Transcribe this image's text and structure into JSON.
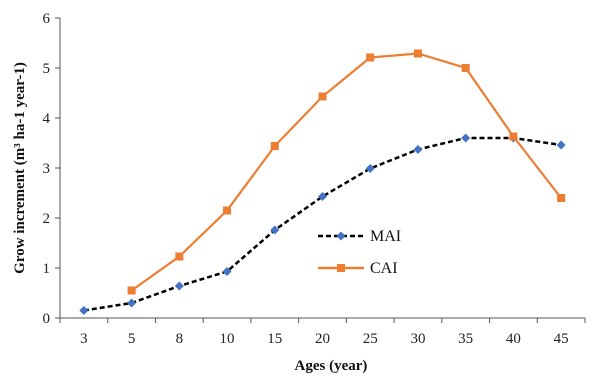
{
  "chart_data": {
    "type": "line",
    "categories": [
      "3",
      "5",
      "8",
      "10",
      "15",
      "20",
      "25",
      "30",
      "35",
      "40",
      "45"
    ],
    "xlabel": "Ages (year)",
    "ylabel": "Grow increment (m³ ha-1 year-1)",
    "ylim": [
      0,
      6
    ],
    "yticks": [
      "0",
      "1",
      "2",
      "3",
      "4",
      "5",
      "6"
    ],
    "grid": false,
    "legend_position": "center-right",
    "series": [
      {
        "name": "MAI",
        "values": [
          0.15,
          0.3,
          0.64,
          0.93,
          1.76,
          2.43,
          2.99,
          3.37,
          3.6,
          3.6,
          3.46
        ],
        "color": "#000000",
        "marker_color": "#4472C4",
        "line_style": "dashed",
        "marker": "diamond"
      },
      {
        "name": "CAI",
        "values": [
          null,
          0.55,
          1.23,
          2.15,
          3.44,
          4.43,
          5.21,
          5.29,
          5.0,
          3.63,
          2.4
        ],
        "color": "#ED7D31",
        "marker_color": "#ED7D31",
        "line_style": "solid",
        "marker": "square"
      }
    ]
  }
}
